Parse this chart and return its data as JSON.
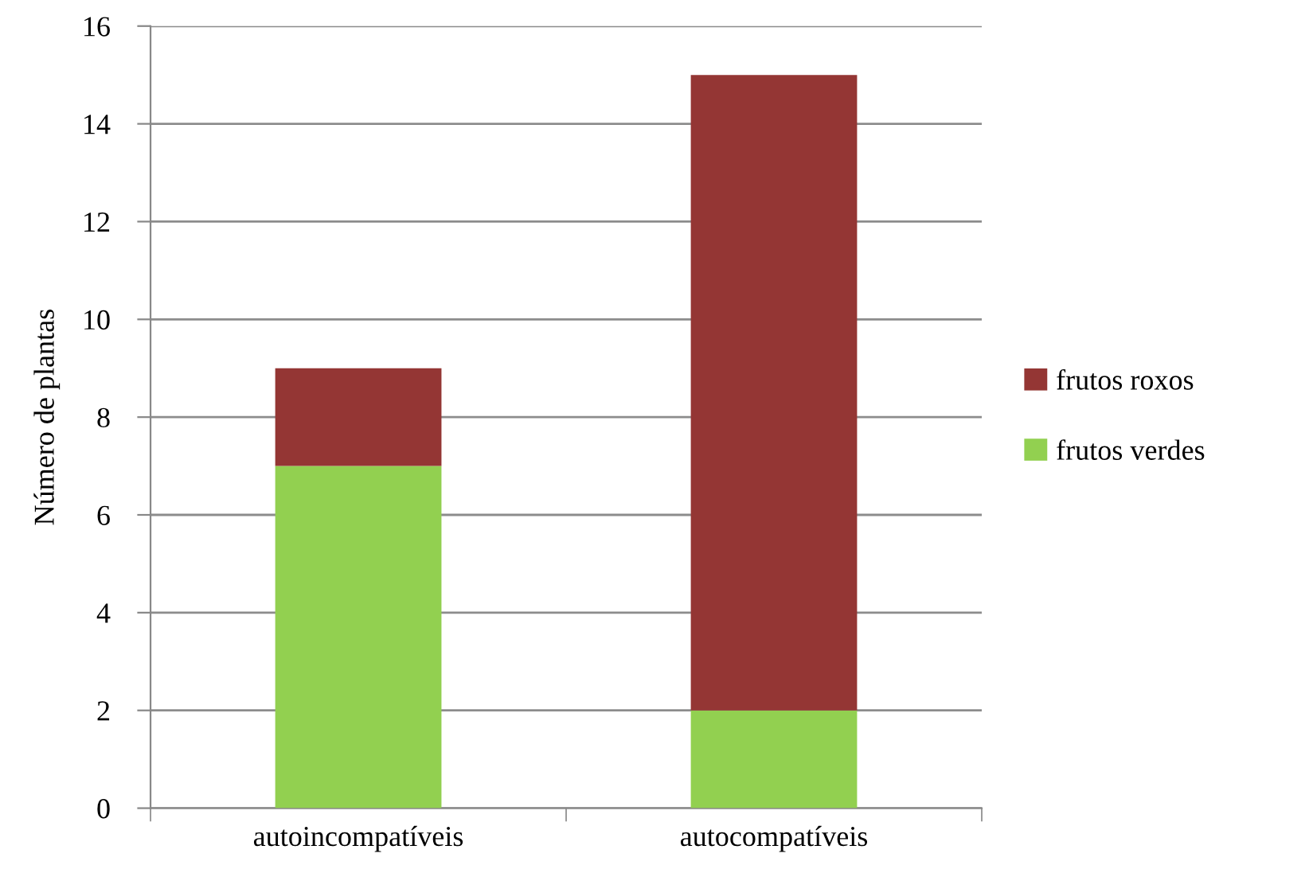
{
  "chart_data": {
    "type": "bar",
    "ylabel": "Número de plantas",
    "categories": [
      "autoincompatíveis",
      "autocompatíveis"
    ],
    "stacked": true,
    "series": [
      {
        "name": "frutos verdes",
        "color": "#92d050",
        "values": [
          7,
          2
        ]
      },
      {
        "name": "frutos roxos",
        "color": "#943634",
        "values": [
          2,
          13
        ]
      }
    ],
    "ylim": [
      0,
      16
    ],
    "yticks": [
      0,
      2,
      4,
      6,
      8,
      10,
      12,
      14,
      16
    ],
    "grid": "y",
    "legend": "right"
  }
}
